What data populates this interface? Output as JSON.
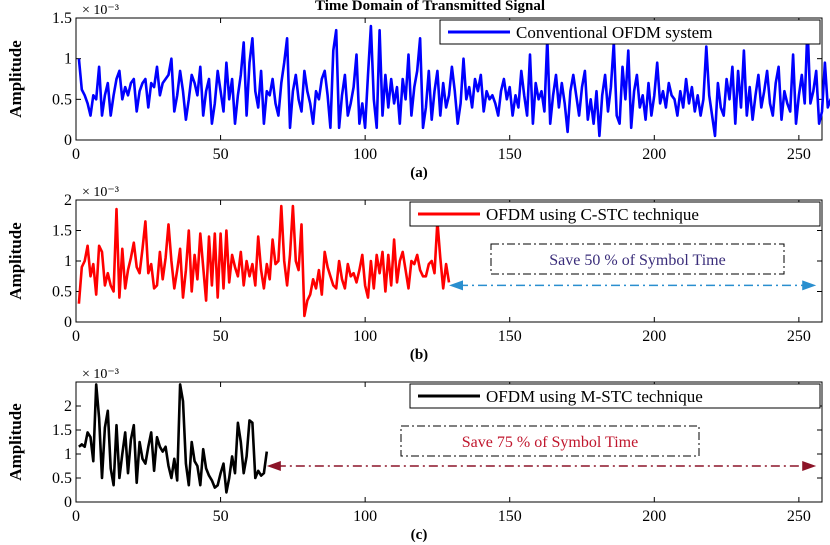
{
  "figure_title": "Time Domain of  Transmitted Signal",
  "chart_data": [
    {
      "type": "line",
      "panel_label": "(a)",
      "ylabel": "Amplitude",
      "exponent_label": "× 10⁻³",
      "xlim": [
        0,
        258
      ],
      "ylim": [
        0,
        1.5
      ],
      "xticks": [
        "0",
        "50",
        "100",
        "150",
        "200",
        "250"
      ],
      "yticks": [
        "0",
        "0.5",
        "1",
        "1.5"
      ],
      "legend": "Conventional OFDM system",
      "color": "#0000ff",
      "annotation": "",
      "arrow_color": "",
      "arrow_range": [],
      "series": [
        {
          "name": "Conventional OFDM system",
          "y": [
            1.0,
            0.62,
            0.55,
            0.45,
            0.3,
            0.55,
            0.5,
            0.9,
            0.3,
            0.55,
            0.7,
            0.3,
            0.55,
            0.75,
            0.85,
            0.5,
            0.65,
            0.55,
            0.7,
            0.75,
            0.35,
            0.6,
            0.7,
            0.75,
            0.4,
            0.7,
            0.65,
            0.9,
            0.55,
            0.7,
            0.75,
            0.8,
            1.0,
            0.35,
            0.55,
            0.85,
            0.6,
            0.25,
            0.5,
            0.8,
            0.7,
            0.55,
            0.9,
            0.3,
            0.6,
            0.75,
            0.2,
            0.45,
            0.85,
            0.6,
            0.35,
            0.95,
            0.5,
            0.75,
            0.2,
            0.55,
            0.8,
            1.2,
            0.3,
            0.95,
            1.25,
            0.6,
            0.4,
            0.85,
            0.2,
            0.6,
            0.55,
            0.75,
            0.45,
            0.3,
            0.7,
            0.95,
            1.25,
            0.15,
            0.6,
            0.8,
            0.5,
            0.35,
            0.85,
            0.6,
            0.45,
            0.2,
            0.6,
            0.5,
            0.75,
            0.85,
            0.55,
            0.15,
            1.1,
            1.35,
            0.15,
            0.55,
            0.8,
            0.3,
            0.45,
            0.65,
            1.05,
            0.2,
            0.45,
            0.15,
            0.8,
            1.4,
            0.5,
            0.15,
            1.35,
            0.3,
            0.8,
            0.4,
            0.75,
            0.45,
            0.65,
            0.2,
            0.75,
            0.5,
            1.05,
            0.3,
            0.65,
            0.85,
            1.25,
            0.15,
            0.4,
            0.85,
            0.25,
            0.6,
            0.85,
            0.3,
            0.7,
            0.4,
            0.55,
            0.9,
            0.6,
            0.2,
            0.45,
            1.0,
            0.5,
            0.65,
            0.4,
            0.75,
            0.6,
            0.8,
            0.35,
            0.6,
            0.5,
            0.55,
            0.45,
            0.3,
            0.6,
            0.75,
            0.5,
            0.65,
            0.3,
            0.55,
            0.4,
            0.85,
            0.55,
            0.3,
            1.05,
            0.2,
            0.7,
            0.5,
            0.6,
            0.35,
            1.25,
            0.2,
            0.55,
            0.8,
            0.4,
            0.7,
            0.45,
            0.1,
            0.6,
            0.8,
            0.55,
            0.3,
            0.65,
            0.85,
            0.25,
            0.5,
            0.2,
            0.6,
            0.05,
            0.55,
            0.8,
            0.35,
            0.65,
            1.2,
            0.3,
            0.2,
            0.9,
            0.5,
            1.1,
            0.15,
            0.6,
            0.8,
            0.4,
            0.55,
            0.25,
            0.7,
            0.3,
            0.55,
            0.95,
            0.45,
            0.6,
            0.4,
            0.7,
            0.55,
            0.5,
            0.3,
            0.6,
            0.4,
            0.75,
            0.45,
            0.65,
            0.35,
            0.55,
            0.3,
            0.5,
            1.15,
            0.55,
            0.3,
            0.05,
            0.7,
            0.4,
            0.3,
            0.75,
            0.5,
            0.9,
            0.2,
            0.85,
            0.4,
            1.1,
            0.3,
            0.65,
            0.25,
            0.55,
            0.8,
            0.4,
            0.6,
            0.85,
            0.45,
            0.3,
            0.7,
            0.9,
            0.25,
            0.6,
            0.45,
            0.35,
            1.05,
            0.2,
            0.55,
            0.8,
            0.45,
            1.4,
            0.45,
            0.6,
            0.85,
            0.2,
            0.35,
            0.95,
            0.4,
            0.5,
            0.45,
            0.55,
            0.45,
            0.35,
            0.15,
            0.25
          ]
        }
      ]
    },
    {
      "type": "line",
      "panel_label": "(b)",
      "ylabel": "Amplitude",
      "exponent_label": "× 10⁻³",
      "xlim": [
        0,
        258
      ],
      "ylim": [
        0,
        2
      ],
      "xticks": [
        "0",
        "50",
        "100",
        "150",
        "200",
        "250"
      ],
      "yticks": [
        "0",
        "0.5",
        "1",
        "1.5",
        "2"
      ],
      "legend": "OFDM using C-STC technique",
      "color": "#ff0000",
      "annotation": "Save 50 % of Symbol Time",
      "annotation_color": "#3a2d7a",
      "arrow_color": "#2a8fcf",
      "arrow_range": [
        129,
        256
      ],
      "series": [
        {
          "name": "OFDM using C-STC technique",
          "y": [
            0.3,
            0.9,
            1.0,
            1.25,
            0.75,
            0.95,
            0.45,
            1.25,
            1.15,
            0.6,
            0.8,
            0.6,
            0.5,
            1.85,
            0.4,
            1.2,
            0.55,
            0.85,
            1.05,
            1.3,
            0.9,
            0.8,
            1.2,
            1.65,
            0.8,
            0.95,
            0.55,
            0.6,
            1.15,
            0.7,
            1.05,
            1.6,
            1.0,
            0.55,
            0.85,
            1.2,
            0.4,
            0.85,
            1.5,
            0.5,
            1.1,
            0.7,
            1.45,
            0.9,
            0.35,
            1.4,
            0.6,
            1.45,
            0.4,
            1.45,
            0.55,
            1.5,
            0.65,
            1.1,
            0.9,
            0.75,
            1.15,
            0.6,
            1.0,
            0.75,
            0.95,
            0.6,
            1.4,
            0.85,
            0.55,
            0.95,
            0.7,
            1.35,
            0.95,
            1.0,
            1.9,
            1.0,
            0.6,
            1.1,
            1.9,
            1.0,
            0.85,
            1.6,
            0.1,
            0.35,
            0.45,
            0.7,
            0.55,
            0.85,
            0.45,
            1.15,
            0.9,
            0.75,
            0.6,
            0.55,
            1.0,
            0.7,
            0.55,
            0.95,
            0.75,
            0.8,
            0.65,
            0.85,
            1.1,
            0.6,
            0.4,
            1.0,
            0.55,
            1.1,
            0.8,
            1.15,
            0.5,
            1.1,
            0.6,
            1.35,
            0.65,
            1.0,
            1.15,
            0.85,
            0.55,
            1.0,
            0.95,
            1.1,
            0.85,
            0.75,
            0.75,
            0.95,
            1.0,
            0.8,
            1.65,
            1.05,
            0.55,
            0.95,
            0.65
          ]
        }
      ]
    },
    {
      "type": "line",
      "panel_label": "(c)",
      "ylabel": "Amplitude",
      "exponent_label": "× 10⁻³",
      "xlim": [
        0,
        258
      ],
      "ylim": [
        0,
        2.5
      ],
      "xticks": [
        "0",
        "50",
        "100",
        "150",
        "200",
        "250"
      ],
      "yticks": [
        "0",
        "0.5",
        "1",
        "1.5",
        "2"
      ],
      "legend": "OFDM using M-STC technique",
      "color": "#000000",
      "annotation": "Save 75 % of Symbol Time",
      "annotation_color": "#c0162d",
      "arrow_color": "#8c1428",
      "arrow_range": [
        66,
        256
      ],
      "series": [
        {
          "name": "OFDM using M-STC technique",
          "y": [
            1.15,
            1.2,
            1.15,
            1.45,
            1.35,
            0.85,
            2.45,
            1.75,
            0.5,
            1.55,
            1.9,
            0.7,
            0.35,
            1.6,
            0.5,
            1.0,
            1.45,
            0.6,
            1.3,
            1.6,
            0.4,
            1.25,
            0.9,
            0.8,
            1.15,
            1.45,
            0.65,
            1.35,
            1.15,
            1.05,
            1.15,
            0.75,
            0.5,
            0.9,
            0.45,
            2.45,
            2.1,
            0.8,
            0.35,
            1.25,
            0.85,
            0.75,
            0.35,
            1.1,
            0.7,
            0.55,
            0.45,
            0.3,
            0.35,
            0.6,
            0.8,
            0.2,
            0.5,
            0.95,
            0.6,
            1.65,
            1.25,
            0.6,
            0.95,
            1.7,
            1.65,
            0.5,
            0.65,
            0.55,
            0.6,
            1.05
          ]
        }
      ]
    }
  ]
}
